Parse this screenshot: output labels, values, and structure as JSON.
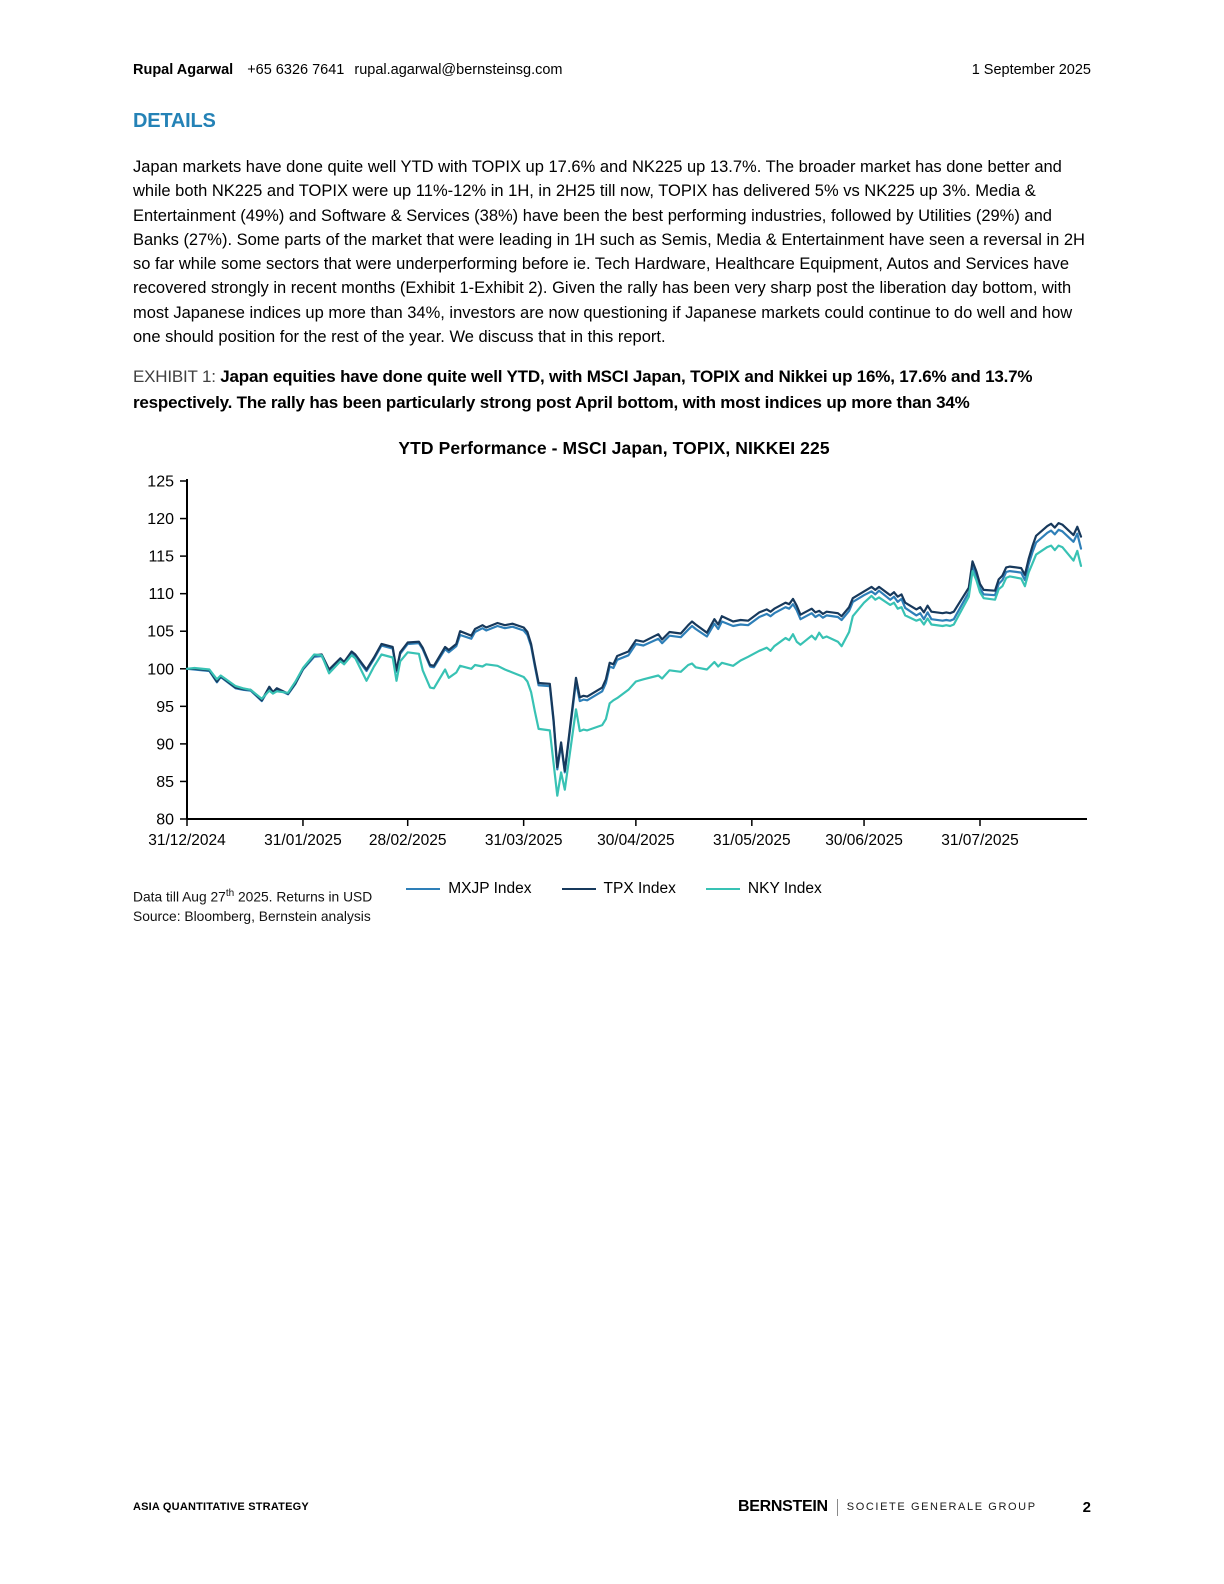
{
  "header": {
    "author": "Rupal Agarwal",
    "phone": "+65 6326 7641",
    "email": "rupal.agarwal@bernsteinsg.com",
    "date": "1 September 2025"
  },
  "section_title": "DETAILS",
  "body_paragraph": "Japan markets have done quite well YTD with TOPIX up 17.6% and NK225 up 13.7%. The broader market has done better and while both NK225 and TOPIX were up 11%-12% in 1H, in 2H25 till now, TOPIX has delivered 5% vs NK225 up 3%. Media & Entertainment (49%) and Software & Services (38%) have been the best performing industries, followed by Utilities (29%) and Banks (27%). Some parts of the market that were leading in 1H such as Semis, Media & Entertainment have seen a reversal in 2H so far while some sectors that were underperforming before ie. Tech Hardware, Healthcare Equipment, Autos and Services have recovered strongly in recent months (Exhibit 1-Exhibit 2). Given the rally has been very sharp post the liberation day bottom, with most Japanese indices up more than 34%, investors are now questioning if Japanese markets could continue to do well and how one should position for the rest of the year. We discuss that in this report.",
  "exhibit": {
    "label": "EXHIBIT 1:",
    "title": "Japan equities have done quite well YTD, with MSCI Japan, TOPIX and Nikkei up 16%, 17.6% and 13.7% respectively. The rally has been particularly strong post April bottom, with most indices up more than 34%"
  },
  "chart_data": {
    "type": "line",
    "title": "YTD Performance - MSCI Japan, TOPIX, NIKKEI 225",
    "xlabel": "",
    "ylabel": "",
    "grid": false,
    "legend_position": "bottom",
    "ylim": [
      80,
      125
    ],
    "ytick_step": 5,
    "xticks": [
      "31/12/2024",
      "31/01/2025",
      "28/02/2025",
      "31/03/2025",
      "30/04/2025",
      "31/05/2025",
      "30/06/2025",
      "31/07/2025"
    ],
    "x": [
      "31/12/2024",
      "02/01/2025",
      "06/01/2025",
      "08/01/2025",
      "09/01/2025",
      "13/01/2025",
      "15/01/2025",
      "17/01/2025",
      "20/01/2025",
      "22/01/2025",
      "23/01/2025",
      "24/01/2025",
      "27/01/2025",
      "29/01/2025",
      "31/01/2025",
      "03/02/2025",
      "05/02/2025",
      "07/02/2025",
      "10/02/2025",
      "11/02/2025",
      "13/02/2025",
      "14/02/2025",
      "17/02/2025",
      "19/02/2025",
      "21/02/2025",
      "24/02/2025",
      "25/02/2025",
      "26/02/2025",
      "28/02/2025",
      "03/03/2025",
      "04/03/2025",
      "06/03/2025",
      "07/03/2025",
      "10/03/2025",
      "11/03/2025",
      "13/03/2025",
      "14/03/2025",
      "17/03/2025",
      "18/03/2025",
      "20/03/2025",
      "21/03/2025",
      "24/03/2025",
      "26/03/2025",
      "28/03/2025",
      "31/03/2025",
      "01/04/2025",
      "02/04/2025",
      "03/04/2025",
      "04/04/2025",
      "07/04/2025",
      "08/04/2025",
      "09/04/2025",
      "10/04/2025",
      "11/04/2025",
      "14/04/2025",
      "15/04/2025",
      "16/04/2025",
      "17/04/2025",
      "21/04/2025",
      "22/04/2025",
      "23/04/2025",
      "24/04/2025",
      "25/04/2025",
      "28/04/2025",
      "30/04/2025",
      "02/05/2025",
      "06/05/2025",
      "07/05/2025",
      "09/05/2025",
      "12/05/2025",
      "14/05/2025",
      "15/05/2025",
      "16/05/2025",
      "19/05/2025",
      "21/05/2025",
      "22/05/2025",
      "23/05/2025",
      "26/05/2025",
      "28/05/2025",
      "30/05/2025",
      "02/06/2025",
      "04/06/2025",
      "05/06/2025",
      "06/06/2025",
      "09/06/2025",
      "10/06/2025",
      "11/06/2025",
      "12/06/2025",
      "13/06/2025",
      "16/06/2025",
      "17/06/2025",
      "18/06/2025",
      "19/06/2025",
      "20/06/2025",
      "23/06/2025",
      "24/06/2025",
      "26/06/2025",
      "27/06/2025",
      "30/06/2025",
      "02/07/2025",
      "03/07/2025",
      "04/07/2025",
      "07/07/2025",
      "08/07/2025",
      "09/07/2025",
      "10/07/2025",
      "11/07/2025",
      "14/07/2025",
      "15/07/2025",
      "16/07/2025",
      "17/07/2025",
      "18/07/2025",
      "21/07/2025",
      "22/07/2025",
      "23/07/2025",
      "24/07/2025",
      "28/07/2025",
      "29/07/2025",
      "30/07/2025",
      "31/07/2025",
      "01/08/2025",
      "04/08/2025",
      "05/08/2025",
      "06/08/2025",
      "07/08/2025",
      "08/08/2025",
      "11/08/2025",
      "12/08/2025",
      "13/08/2025",
      "14/08/2025",
      "15/08/2025",
      "18/08/2025",
      "19/08/2025",
      "20/08/2025",
      "21/08/2025",
      "22/08/2025",
      "25/08/2025",
      "26/08/2025",
      "27/08/2025"
    ],
    "series": [
      {
        "name": "MXJP Index",
        "color": "#2E7FB8",
        "values": [
          100.0,
          99.9,
          99.7,
          98.2,
          98.9,
          97.4,
          97.2,
          97.1,
          95.7,
          97.4,
          96.8,
          97.3,
          96.6,
          98.0,
          99.9,
          101.6,
          101.7,
          99.8,
          101.2,
          100.7,
          102.1,
          101.7,
          99.7,
          101.3,
          103.1,
          102.7,
          99.6,
          102.0,
          103.3,
          103.4,
          102.6,
          100.3,
          100.2,
          102.6,
          102.2,
          103.0,
          104.5,
          104.0,
          104.9,
          105.4,
          105.1,
          105.7,
          105.4,
          105.6,
          105.1,
          104.5,
          103.0,
          100.3,
          97.8,
          97.7,
          92.9,
          86.6,
          89.9,
          86.2,
          98.3,
          95.7,
          95.9,
          95.8,
          97.0,
          98.1,
          100.3,
          100.1,
          101.2,
          101.8,
          103.3,
          103.1,
          104.0,
          103.4,
          104.4,
          104.2,
          105.2,
          105.7,
          105.3,
          104.3,
          106.0,
          105.3,
          106.3,
          105.7,
          105.9,
          105.8,
          106.9,
          107.3,
          107.0,
          107.4,
          108.2,
          108.0,
          108.6,
          107.8,
          106.6,
          107.4,
          106.9,
          107.2,
          106.8,
          107.1,
          106.9,
          106.5,
          107.7,
          108.9,
          109.8,
          110.3,
          109.9,
          110.4,
          109.2,
          109.6,
          108.9,
          109.3,
          108.1,
          107.1,
          107.4,
          106.6,
          107.5,
          106.6,
          106.4,
          106.5,
          106.4,
          106.6,
          110.2,
          113.7,
          112.4,
          110.7,
          109.9,
          109.8,
          111.3,
          111.8,
          112.9,
          113.0,
          112.8,
          111.8,
          113.9,
          115.5,
          116.8,
          118.1,
          118.4,
          117.9,
          118.5,
          118.3,
          116.9,
          118.0,
          116.0
        ]
      },
      {
        "name": "TPX Index",
        "color": "#17395C",
        "values": [
          100.0,
          100.0,
          99.8,
          98.3,
          99.0,
          97.5,
          97.3,
          97.2,
          95.8,
          97.6,
          96.9,
          97.4,
          96.7,
          98.1,
          100.0,
          101.8,
          101.9,
          99.9,
          101.4,
          100.9,
          102.3,
          101.9,
          99.9,
          101.5,
          103.3,
          102.9,
          99.8,
          102.2,
          103.5,
          103.6,
          102.8,
          100.5,
          100.4,
          102.9,
          102.5,
          103.3,
          105.0,
          104.4,
          105.3,
          105.8,
          105.5,
          106.1,
          105.8,
          106.0,
          105.5,
          104.9,
          103.3,
          100.6,
          98.1,
          98.0,
          93.2,
          86.9,
          90.2,
          86.4,
          98.8,
          96.2,
          96.4,
          96.3,
          97.5,
          98.6,
          100.8,
          100.6,
          101.7,
          102.3,
          103.8,
          103.6,
          104.6,
          103.9,
          104.9,
          104.7,
          105.8,
          106.3,
          105.9,
          104.8,
          106.6,
          105.9,
          107.0,
          106.3,
          106.5,
          106.4,
          107.5,
          107.9,
          107.6,
          108.0,
          108.8,
          108.6,
          109.3,
          108.4,
          107.2,
          108.0,
          107.5,
          107.7,
          107.3,
          107.6,
          107.4,
          107.0,
          108.2,
          109.4,
          110.3,
          110.9,
          110.5,
          110.9,
          109.8,
          110.2,
          109.6,
          109.9,
          108.8,
          107.9,
          108.2,
          107.5,
          108.4,
          107.6,
          107.4,
          107.5,
          107.4,
          107.6,
          110.8,
          114.3,
          113.0,
          111.3,
          110.5,
          110.4,
          111.9,
          112.4,
          113.5,
          113.6,
          113.4,
          112.5,
          114.6,
          116.3,
          117.7,
          119.0,
          119.3,
          118.8,
          119.4,
          119.2,
          117.8,
          118.9,
          117.6
        ]
      },
      {
        "name": "NKY Index",
        "color": "#38C2B4",
        "values": [
          100.0,
          100.1,
          99.9,
          98.6,
          99.1,
          97.7,
          97.4,
          97.2,
          96.0,
          97.1,
          96.7,
          97.0,
          96.8,
          98.3,
          100.1,
          101.9,
          101.8,
          99.4,
          101.0,
          100.6,
          101.8,
          101.4,
          98.4,
          100.3,
          101.9,
          101.5,
          98.4,
          101.0,
          102.2,
          102.0,
          99.8,
          97.5,
          97.4,
          99.9,
          98.8,
          99.5,
          100.4,
          100.0,
          100.5,
          100.3,
          100.6,
          100.4,
          99.9,
          99.5,
          98.9,
          98.3,
          96.9,
          94.3,
          92.0,
          91.8,
          87.4,
          83.1,
          86.2,
          83.9,
          94.6,
          91.7,
          91.9,
          91.8,
          92.5,
          93.3,
          95.4,
          95.8,
          96.1,
          97.2,
          98.3,
          98.6,
          99.1,
          98.7,
          99.8,
          99.6,
          100.5,
          100.7,
          100.2,
          99.9,
          100.9,
          100.3,
          100.8,
          100.4,
          101.1,
          101.6,
          102.4,
          102.8,
          102.4,
          103.0,
          104.1,
          103.8,
          104.6,
          103.6,
          103.2,
          104.4,
          103.9,
          104.8,
          104.1,
          104.3,
          103.6,
          103.0,
          104.9,
          107.0,
          108.8,
          109.7,
          109.2,
          109.5,
          108.5,
          108.8,
          108.0,
          108.2,
          107.1,
          106.4,
          106.6,
          105.9,
          106.7,
          105.9,
          105.7,
          105.8,
          105.7,
          105.9,
          109.6,
          113.0,
          111.8,
          110.2,
          109.4,
          109.2,
          110.6,
          111.0,
          112.1,
          112.3,
          112.0,
          111.0,
          112.8,
          114.0,
          115.2,
          116.2,
          116.4,
          115.8,
          116.4,
          116.2,
          114.4,
          115.7,
          113.7
        ]
      }
    ]
  },
  "notes": {
    "line1_pre": "Data till Aug 27",
    "line1_sup": "th",
    "line1_post": " 2025. Returns in USD",
    "line2": "Source: Bloomberg, Bernstein analysis"
  },
  "footer": {
    "left": "ASIA QUANTITATIVE STRATEGY",
    "brand": "BERNSTEIN",
    "group": "SOCIETE GENERALE GROUP",
    "page": "2"
  }
}
